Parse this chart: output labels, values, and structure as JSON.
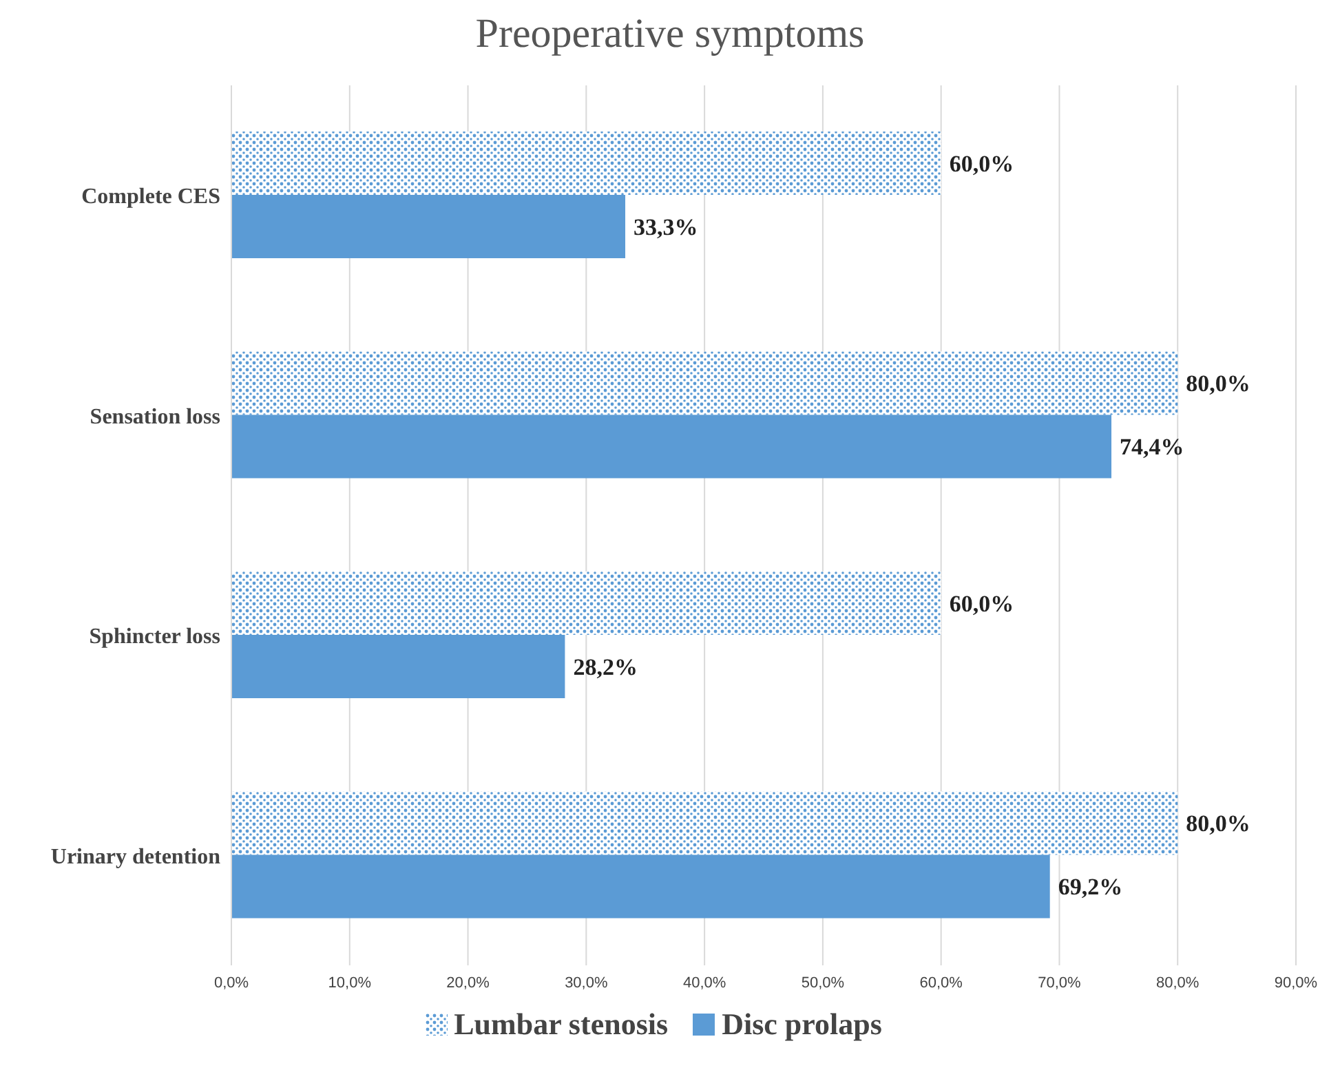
{
  "chart_data": {
    "type": "bar",
    "orientation": "horizontal",
    "title": "Preoperative symptoms",
    "categories": [
      "Complete CES",
      "Sensation loss",
      "Sphincter loss",
      "Urinary detention"
    ],
    "series": [
      {
        "name": "Lumbar stenosis",
        "color": "#5b9bd5",
        "values": [
          60.0,
          80.0,
          60.0,
          80.0
        ],
        "value_labels": [
          "60,0%",
          "80,0%",
          "60,0%",
          "80,0%"
        ]
      },
      {
        "name": "Disc prolaps",
        "color": "#5b9bd5",
        "values": [
          33.3,
          74.4,
          28.2,
          69.2
        ],
        "value_labels": [
          "33,3%",
          "74,4%",
          "28,2%",
          "69,2%"
        ]
      }
    ],
    "xlim": [
      0,
      90
    ],
    "xticks": [
      {
        "value": 0,
        "label": "0,0%"
      },
      {
        "value": 10,
        "label": "10,0%"
      },
      {
        "value": 20,
        "label": "20,0%"
      },
      {
        "value": 30,
        "label": "30,0%"
      },
      {
        "value": 40,
        "label": "40,0%"
      },
      {
        "value": 50,
        "label": "50,0%"
      },
      {
        "value": 60,
        "label": "60,0%"
      },
      {
        "value": 70,
        "label": "70,0%"
      },
      {
        "value": 80,
        "label": "80,0%"
      },
      {
        "value": 90,
        "label": "90,0%"
      }
    ],
    "grid": "x",
    "legend": "bottom"
  }
}
